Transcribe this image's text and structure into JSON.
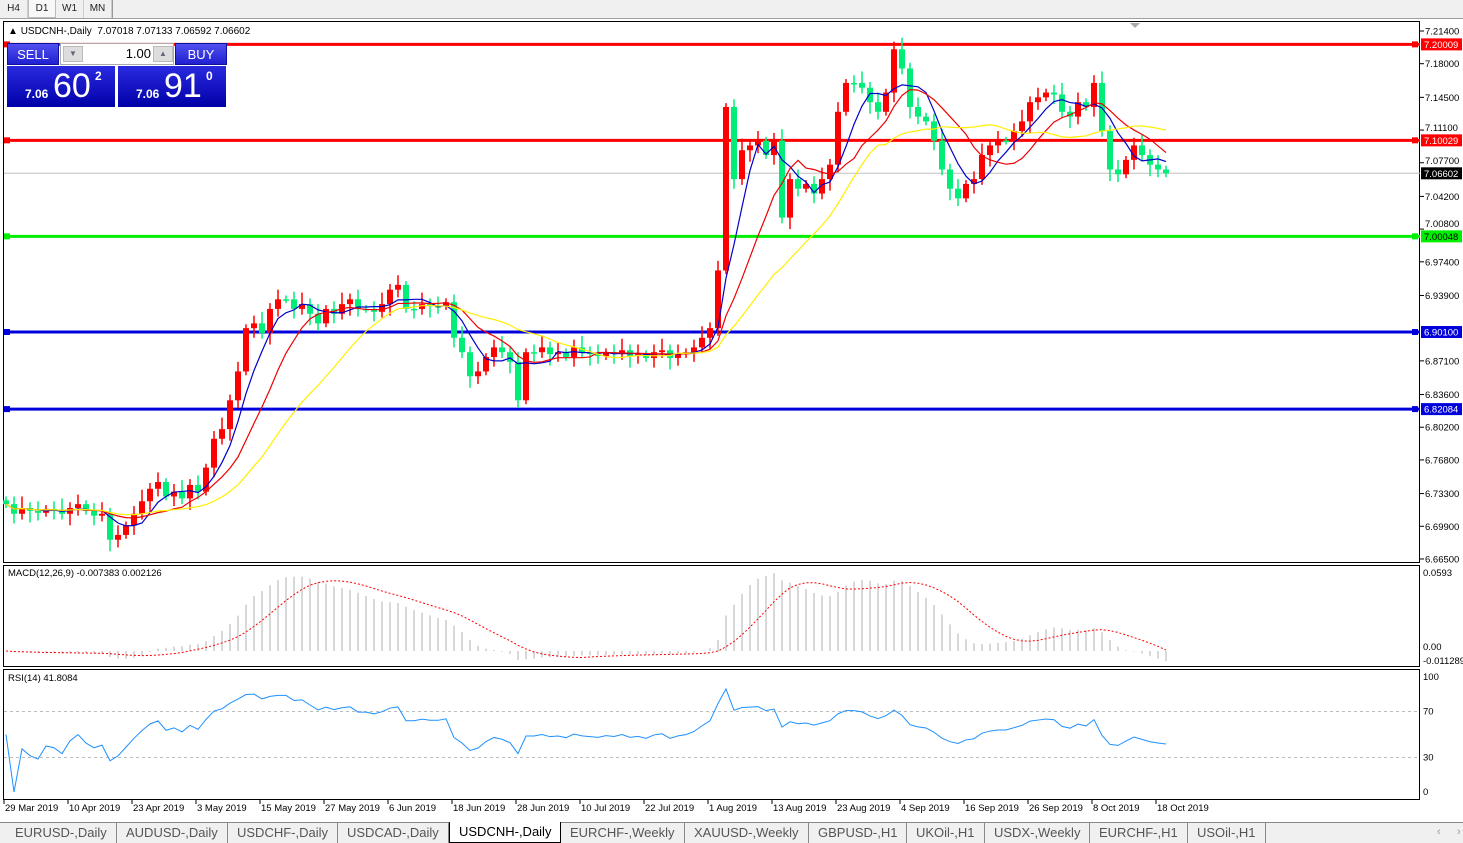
{
  "toolbar": {
    "timeframes": [
      "H4",
      "D1",
      "W1",
      "MN"
    ],
    "selected": "D1"
  },
  "chart": {
    "title": "USDCNH-,Daily",
    "ohlc_text": "7.07018 7.07133 7.06592 7.06602"
  },
  "trade_panel": {
    "sell_label": "SELL",
    "buy_label": "BUY",
    "lot": "1.00",
    "sell_prefix": "7.06",
    "sell_big": "60",
    "sell_sup": "2",
    "buy_prefix": "7.06",
    "buy_big": "91",
    "buy_sup": "0"
  },
  "indicators": {
    "macd_label": "MACD(12,26,9) -0.007383 0.002126",
    "rsi_label": "RSI(14) 41.8084"
  },
  "colors": {
    "bull": "#ff0000",
    "bear": "#00ee77",
    "ma_fast": "#0000cc",
    "ma_mid": "#ee0000",
    "ma_slow": "#ffee00",
    "macd_hist": "#b0b0b0",
    "macd_signal": "#ff0000",
    "rsi": "#1e90ff"
  },
  "tabs": [
    "EURUSD-,Daily",
    "AUDUSD-,Daily",
    "USDCHF-,Daily",
    "USDCAD-,Daily",
    "USDCNH-,Daily",
    "EURCHF-,Weekly",
    "XAUUSD-,Weekly",
    "GBPUSD-,H1",
    "UKOil-,H1",
    "USDX-,Weekly",
    "EURCHF-,H1",
    "USOil-,H1"
  ],
  "active_tab": "USDCNH-,Daily",
  "chart_data": {
    "type": "candlestick",
    "price_ticks": [
      "7.21400",
      "7.18000",
      "7.14500",
      "7.11100",
      "7.07700",
      "7.04200",
      "7.00800",
      "6.97400",
      "6.93900",
      "6.87100",
      "6.83600",
      "6.80200",
      "6.76800",
      "6.73300",
      "6.69900",
      "6.66500"
    ],
    "ylim": [
      6.665,
      7.214
    ],
    "date_ticks": [
      "29 Mar 2019",
      "10 Apr 2019",
      "23 Apr 2019",
      "3 May 2019",
      "15 May 2019",
      "27 May 2019",
      "6 Jun 2019",
      "18 Jun 2019",
      "28 Jun 2019",
      "10 Jul 2019",
      "22 Jul 2019",
      "1 Aug 2019",
      "13 Aug 2019",
      "23 Aug 2019",
      "4 Sep 2019",
      "16 Sep 2019",
      "26 Sep 2019",
      "8 Oct 2019",
      "18 Oct 2019"
    ],
    "hlines": [
      {
        "value": "7.20009",
        "color": "#ff0000"
      },
      {
        "value": "7.10029",
        "color": "#ff0000"
      },
      {
        "value": "7.00048",
        "color": "#00ee00"
      },
      {
        "value": "6.90100",
        "color": "#0000dd"
      },
      {
        "value": "6.82084",
        "color": "#0000dd"
      }
    ],
    "current_price": "7.06602",
    "closes": [
      6.722,
      6.712,
      6.718,
      6.715,
      6.713,
      6.717,
      6.716,
      6.712,
      6.718,
      6.722,
      6.715,
      6.71,
      6.712,
      6.685,
      6.69,
      6.7,
      6.712,
      6.725,
      6.738,
      6.745,
      6.73,
      6.735,
      6.728,
      6.742,
      6.735,
      6.76,
      6.79,
      6.8,
      6.83,
      6.86,
      6.905,
      6.91,
      6.9,
      6.925,
      6.935,
      6.935,
      6.925,
      6.93,
      6.92,
      6.91,
      6.925,
      6.92,
      6.93,
      6.935,
      6.925,
      6.925,
      6.922,
      6.93,
      6.945,
      6.95,
      6.925,
      6.925,
      6.93,
      6.928,
      6.928,
      6.932,
      6.895,
      6.88,
      6.855,
      6.86,
      6.875,
      6.885,
      6.88,
      6.87,
      6.83,
      6.88,
      6.88,
      6.885,
      6.878,
      6.88,
      6.875,
      6.885,
      6.88,
      6.878,
      6.876,
      6.88,
      6.878,
      6.882,
      6.876,
      6.878,
      6.874,
      6.88,
      6.882,
      6.874,
      6.878,
      6.88,
      6.885,
      6.895,
      6.905,
      6.965,
      7.135,
      7.06,
      7.09,
      7.095,
      7.1,
      7.085,
      7.1,
      7.02,
      7.06,
      7.05,
      7.055,
      7.045,
      7.06,
      7.075,
      7.13,
      7.16,
      7.16,
      7.155,
      7.14,
      7.13,
      7.15,
      7.195,
      7.175,
      7.135,
      7.125,
      7.12,
      7.1,
      7.07,
      7.05,
      7.04,
      7.055,
      7.06,
      7.085,
      7.095,
      7.1,
      7.1,
      7.11,
      7.12,
      7.14,
      7.145,
      7.15,
      7.148,
      7.13,
      7.125,
      7.14,
      7.135,
      7.16,
      7.11,
      7.07,
      7.065,
      7.08,
      7.095,
      7.085,
      7.075,
      7.07,
      7.066
    ],
    "macd_axis": [
      "0.0593",
      "0.00",
      "-0.011289"
    ],
    "rsi_axis": [
      "100",
      "70",
      "30",
      "0"
    ]
  }
}
